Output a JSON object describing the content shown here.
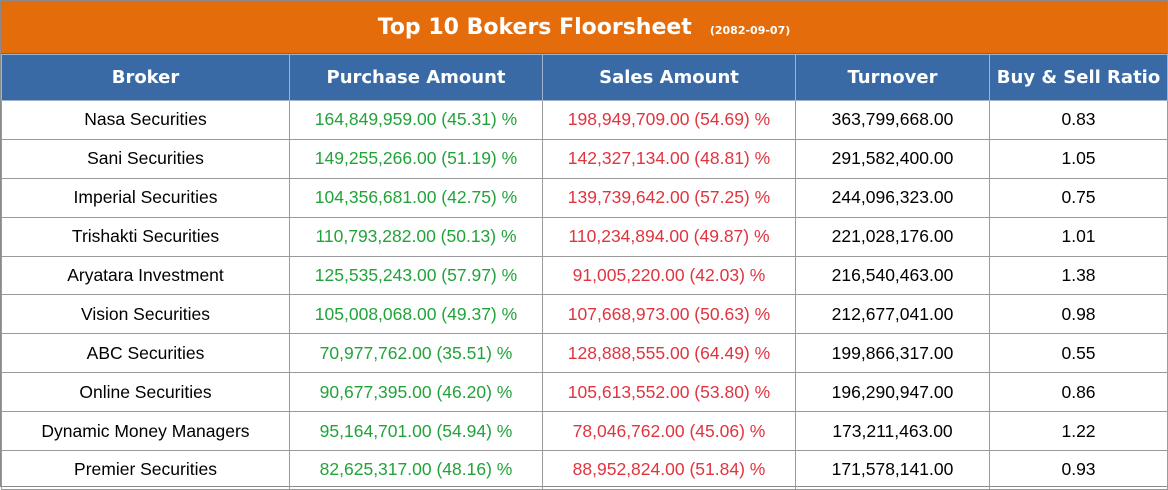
{
  "header": {
    "title": "Top 10 Bokers Floorsheet",
    "date": "(2082-09-07)"
  },
  "columns": [
    "Broker",
    "Purchase Amount",
    "Sales Amount",
    "Turnover",
    "Buy & Sell Ratio"
  ],
  "colors": {
    "title_bg": "#e46c0a",
    "header_bg": "#3a6aa6",
    "buy": "#22a33a",
    "sell": "#e0343f"
  },
  "rows": [
    {
      "broker": "Nasa Securities",
      "purchase": "164,849,959.00 (45.31) %",
      "sales": "198,949,709.00 (54.69) %",
      "turnover": "363,799,668.00",
      "ratio": "0.83"
    },
    {
      "broker": "Sani Securities",
      "purchase": "149,255,266.00 (51.19) %",
      "sales": "142,327,134.00 (48.81) %",
      "turnover": "291,582,400.00",
      "ratio": "1.05"
    },
    {
      "broker": "Imperial Securities",
      "purchase": "104,356,681.00 (42.75) %",
      "sales": "139,739,642.00 (57.25) %",
      "turnover": "244,096,323.00",
      "ratio": "0.75"
    },
    {
      "broker": "Trishakti Securities",
      "purchase": "110,793,282.00 (50.13) %",
      "sales": "110,234,894.00 (49.87) %",
      "turnover": "221,028,176.00",
      "ratio": "1.01"
    },
    {
      "broker": "Aryatara Investment",
      "purchase": "125,535,243.00 (57.97) %",
      "sales": "91,005,220.00 (42.03) %",
      "turnover": "216,540,463.00",
      "ratio": "1.38"
    },
    {
      "broker": "Vision Securities",
      "purchase": "105,008,068.00 (49.37) %",
      "sales": "107,668,973.00 (50.63) %",
      "turnover": "212,677,041.00",
      "ratio": "0.98"
    },
    {
      "broker": "ABC Securities",
      "purchase": "70,977,762.00 (35.51) %",
      "sales": "128,888,555.00 (64.49) %",
      "turnover": "199,866,317.00",
      "ratio": "0.55"
    },
    {
      "broker": "Online Securities",
      "purchase": "90,677,395.00 (46.20) %",
      "sales": "105,613,552.00 (53.80) %",
      "turnover": "196,290,947.00",
      "ratio": "0.86"
    },
    {
      "broker": "Dynamic Money Managers",
      "purchase": "95,164,701.00 (54.94) %",
      "sales": "78,046,762.00 (45.06) %",
      "turnover": "173,211,463.00",
      "ratio": "1.22"
    },
    {
      "broker": "Premier Securities",
      "purchase": "82,625,317.00 (48.16) %",
      "sales": "88,952,824.00 (51.84) %",
      "turnover": "171,578,141.00",
      "ratio": "0.93"
    }
  ]
}
